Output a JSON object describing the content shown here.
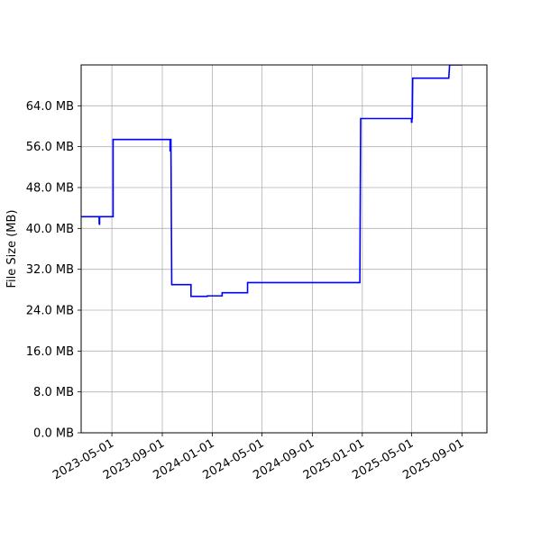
{
  "chart_data": {
    "type": "line",
    "title": "",
    "xlabel": "",
    "ylabel": "File Size (MB)",
    "grid": true,
    "legend": "none",
    "xlim": [
      "2023-02-15",
      "2025-11-01"
    ],
    "ylim": [
      0,
      72
    ],
    "x_ticks": [
      "2023-05-01",
      "2023-09-01",
      "2024-01-01",
      "2024-05-01",
      "2024-09-01",
      "2025-01-01",
      "2025-05-01",
      "2025-09-01"
    ],
    "y_ticks": [
      {
        "value": 0,
        "label": "0.0 MB"
      },
      {
        "value": 8,
        "label": "8.0 MB"
      },
      {
        "value": 16,
        "label": "16.0 MB"
      },
      {
        "value": 24,
        "label": "24.0 MB"
      },
      {
        "value": 32,
        "label": "32.0 MB"
      },
      {
        "value": 40,
        "label": "40.0 MB"
      },
      {
        "value": 48,
        "label": "48.0 MB"
      },
      {
        "value": 56,
        "label": "56.0 MB"
      },
      {
        "value": 64,
        "label": "64.0 MB"
      }
    ],
    "series": [
      {
        "color": "#0000ff",
        "points": [
          [
            "2023-02-15",
            42.3
          ],
          [
            "2023-03-31",
            42.3
          ],
          [
            "2023-03-31",
            41.0
          ],
          [
            "2023-04-01",
            40.7
          ],
          [
            "2023-04-01",
            42.3
          ],
          [
            "2023-05-04",
            42.3
          ],
          [
            "2023-05-04",
            57.4
          ],
          [
            "2023-09-20",
            57.4
          ],
          [
            "2023-09-20",
            55.2
          ],
          [
            "2023-09-21",
            55.2
          ],
          [
            "2023-09-21",
            57.4
          ],
          [
            "2023-09-22",
            57.4
          ],
          [
            "2023-09-24",
            29.0
          ],
          [
            "2023-11-10",
            29.0
          ],
          [
            "2023-11-10",
            26.7
          ],
          [
            "2023-12-20",
            26.7
          ],
          [
            "2023-12-20",
            26.8
          ],
          [
            "2024-01-25",
            26.8
          ],
          [
            "2024-01-25",
            27.4
          ],
          [
            "2024-03-27",
            27.4
          ],
          [
            "2024-03-27",
            29.4
          ],
          [
            "2024-12-26",
            29.4
          ],
          [
            "2024-12-28",
            61.5
          ],
          [
            "2025-05-01",
            61.5
          ],
          [
            "2025-05-01",
            60.8
          ],
          [
            "2025-05-02",
            60.8
          ],
          [
            "2025-05-02",
            61.5
          ],
          [
            "2025-05-03",
            61.5
          ],
          [
            "2025-05-04",
            69.4
          ],
          [
            "2025-07-31",
            69.4
          ],
          [
            "2025-08-02",
            72.0
          ],
          [
            "2025-09-01",
            72.0
          ]
        ]
      }
    ]
  }
}
